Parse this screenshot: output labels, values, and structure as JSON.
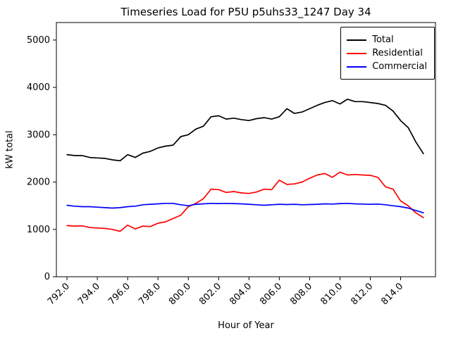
{
  "title": "Timeseries Load for P5U p5uhs33_1247  Day 34",
  "chart_data": {
    "type": "line",
    "title": "Timeseries Load for P5U p5uhs33_1247  Day 34",
    "xlabel": "Hour of Year",
    "ylabel": "kW total",
    "xlim": [
      791.3,
      816.3
    ],
    "ylim": [
      0,
      5370
    ],
    "yticks": [
      0,
      1000,
      2000,
      3000,
      4000,
      5000
    ],
    "xticks": [
      792.0,
      794.0,
      796.0,
      798.0,
      800.0,
      802.0,
      804.0,
      806.0,
      808.0,
      810.0,
      812.0,
      814.0
    ],
    "grid": false,
    "legend_position": "upper right",
    "x": [
      792.0,
      792.5,
      793.0,
      793.5,
      794.0,
      794.5,
      795.0,
      795.5,
      796.0,
      796.5,
      797.0,
      797.5,
      798.0,
      798.5,
      799.0,
      799.5,
      800.0,
      800.5,
      801.0,
      801.5,
      802.0,
      802.5,
      803.0,
      803.5,
      804.0,
      804.5,
      805.0,
      805.5,
      806.0,
      806.5,
      807.0,
      807.5,
      808.0,
      808.5,
      809.0,
      809.5,
      810.0,
      810.5,
      811.0,
      811.5,
      812.0,
      812.5,
      813.0,
      813.5,
      814.0,
      814.5,
      815.0,
      815.5
    ],
    "series": [
      {
        "name": "Total",
        "color": "#000000",
        "values": [
          2580,
          2560,
          2560,
          2520,
          2510,
          2500,
          2470,
          2450,
          2580,
          2520,
          2610,
          2650,
          2720,
          2760,
          2780,
          2960,
          3000,
          3120,
          3180,
          3380,
          3400,
          3330,
          3350,
          3320,
          3300,
          3340,
          3360,
          3330,
          3380,
          3550,
          3450,
          3480,
          3550,
          3620,
          3680,
          3720,
          3650,
          3750,
          3700,
          3700,
          3680,
          3660,
          3620,
          3500,
          3300,
          3150,
          2850,
          2600
        ]
      },
      {
        "name": "Residential",
        "color": "#ff0000",
        "values": [
          1080,
          1070,
          1075,
          1040,
          1030,
          1020,
          1000,
          960,
          1090,
          1010,
          1070,
          1060,
          1130,
          1160,
          1230,
          1300,
          1480,
          1550,
          1650,
          1850,
          1840,
          1780,
          1800,
          1770,
          1760,
          1790,
          1850,
          1840,
          2040,
          1950,
          1960,
          2000,
          2080,
          2150,
          2180,
          2100,
          2210,
          2150,
          2160,
          2150,
          2140,
          2100,
          1900,
          1850,
          1600,
          1500,
          1350,
          1250
        ]
      },
      {
        "name": "Commercial",
        "color": "#0000ff",
        "values": [
          1510,
          1490,
          1480,
          1480,
          1470,
          1460,
          1450,
          1460,
          1480,
          1490,
          1520,
          1530,
          1540,
          1550,
          1550,
          1520,
          1500,
          1530,
          1540,
          1550,
          1545,
          1550,
          1545,
          1540,
          1530,
          1520,
          1510,
          1520,
          1530,
          1525,
          1530,
          1520,
          1525,
          1530,
          1540,
          1535,
          1545,
          1550,
          1540,
          1535,
          1530,
          1535,
          1520,
          1500,
          1480,
          1450,
          1400,
          1350
        ]
      }
    ]
  }
}
